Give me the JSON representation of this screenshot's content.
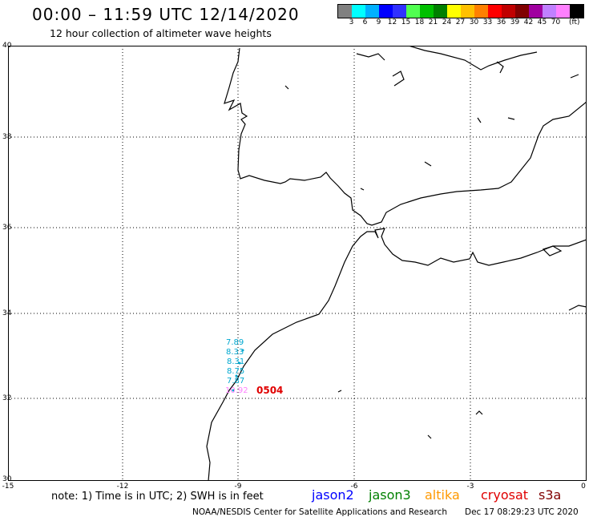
{
  "header": {
    "title": "00:00 – 11:59 UTC 12/14/2020",
    "subtitle": "12 hour collection of altimeter wave heights"
  },
  "legend": {
    "colors": [
      "#808080",
      "#00ffff",
      "#00b0ff",
      "#0000ff",
      "#3030ff",
      "#50ff50",
      "#00c000",
      "#008000",
      "#ffff00",
      "#ffc000",
      "#ff8000",
      "#ff0000",
      "#c00000",
      "#800000",
      "#a000a0",
      "#c080ff",
      "#ff80ff",
      "#000000"
    ],
    "labels": [
      "3",
      "6",
      "9",
      "12",
      "15",
      "18",
      "21",
      "24",
      "27",
      "30",
      "33",
      "36",
      "39",
      "42",
      "45",
      "70"
    ],
    "unit": "(ft)"
  },
  "axes": {
    "y_labels": [
      "40",
      "38",
      "36",
      "34",
      "32",
      "30"
    ],
    "x_labels": [
      "-15",
      "-12",
      "-9",
      "-6",
      "-3",
      "0"
    ]
  },
  "swh_readings": [
    {
      "value": "7.89",
      "color": "#00a8d0"
    },
    {
      "value": "8.33",
      "color": "#00a8d0"
    },
    {
      "value": "8.31",
      "color": "#00a8d0"
    },
    {
      "value": "8.75",
      "color": "#00a8d0"
    },
    {
      "value": "7.87",
      "color": "#00a8d0"
    },
    {
      "value": "10.92",
      "color": "#ff80ff"
    }
  ],
  "pass_id": "0504",
  "footer": {
    "note": "note: 1) Time is in UTC; 2) SWH is in feet",
    "satellites": [
      {
        "name": "jason2",
        "color": "#0000ff"
      },
      {
        "name": "jason3",
        "color": "#008000"
      },
      {
        "name": "altika",
        "color": "#ff9900"
      },
      {
        "name": "cryosat",
        "color": "#e00000"
      },
      {
        "name": "s3a",
        "color": "#800000"
      }
    ],
    "credit": "NOAA/NESDIS Center for Satellite Applications and Research",
    "timestamp": "Dec 17 08:29:23 UTC 2020"
  }
}
